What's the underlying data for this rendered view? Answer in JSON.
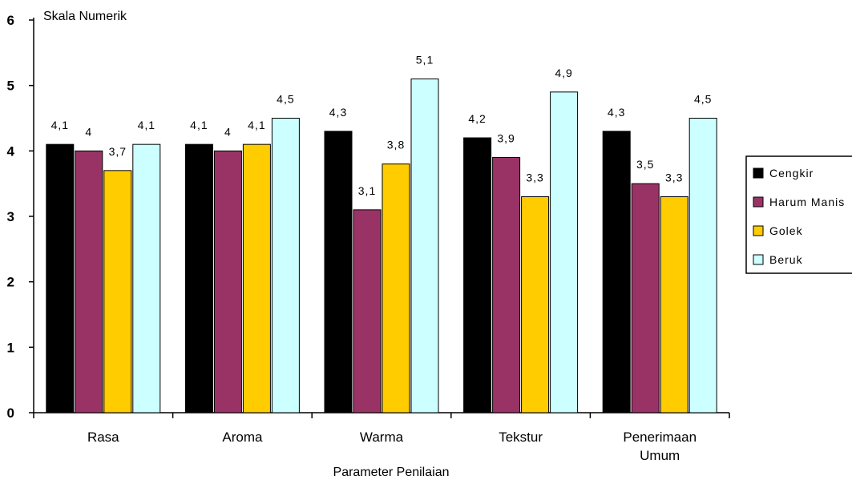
{
  "chart_data": {
    "type": "bar",
    "title": "",
    "ylabel": "Skala Numerik",
    "xlabel": "Parameter Penilaian",
    "ylim": [
      0,
      6
    ],
    "yticks": [
      "0",
      "1",
      "2",
      "3",
      "4",
      "5",
      "6"
    ],
    "categories": [
      [
        "Rasa"
      ],
      [
        "Aroma"
      ],
      [
        "Warma"
      ],
      [
        "Tekstur"
      ],
      [
        "Penerimaan",
        "Umum"
      ]
    ],
    "series": [
      {
        "name": "Cengkir",
        "color": "#000000",
        "values": [
          4.1,
          4.1,
          4.3,
          4.2,
          4.3
        ],
        "labels": [
          "4,1",
          "4,1",
          "4,3",
          "4,2",
          "4,3"
        ]
      },
      {
        "name": "Harum Manis",
        "color": "#993366",
        "values": [
          4.0,
          4.0,
          3.1,
          3.9,
          3.5
        ],
        "labels": [
          "4",
          "4",
          "3,1",
          "3,9",
          "3,5"
        ]
      },
      {
        "name": "Golek",
        "color": "#ffcc00",
        "values": [
          3.7,
          4.1,
          3.8,
          3.3,
          3.3
        ],
        "labels": [
          "3,7",
          "4,1",
          "3,8",
          "3,3",
          "3,3"
        ]
      },
      {
        "name": "Beruk",
        "color": "#ccffff",
        "values": [
          4.1,
          4.5,
          5.1,
          4.9,
          4.5
        ],
        "labels": [
          "4,1",
          "4,5",
          "5,1",
          "4,9",
          "4,5"
        ]
      }
    ],
    "legend_position": "right",
    "grid": false
  }
}
